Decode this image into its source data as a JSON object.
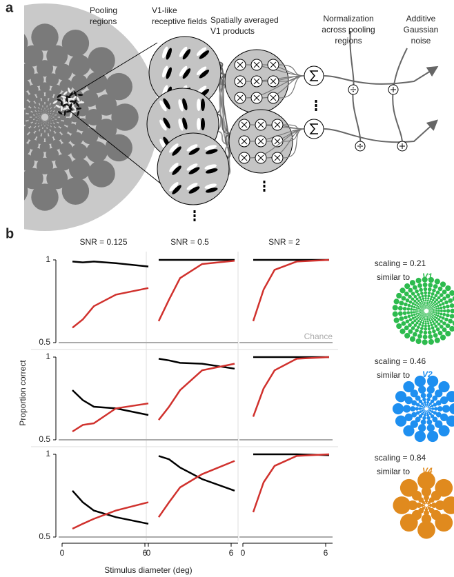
{
  "panel_a": {
    "label": "a",
    "captions": [
      [
        "Pooling",
        "regions"
      ],
      [
        "V1-like",
        "receptive fields"
      ],
      [
        "Spatially averaged",
        "V1 products"
      ],
      [
        "Normalization",
        "across pooling",
        "regions"
      ],
      [
        "Additive",
        "Gaussian",
        "noise"
      ]
    ]
  },
  "panel_b": {
    "label": "b",
    "column_titles": [
      "SNR = 0.125",
      "SNR = 0.5",
      "SNR = 2"
    ],
    "y_label": "Proportion correct",
    "x_label": "Stimulus diameter (deg)",
    "chance_label": "Chance",
    "area_rows": [
      {
        "scaling": "scaling = 0.21",
        "similar": "similar to",
        "area": "V1",
        "color": "#2dbb4e"
      },
      {
        "scaling": "scaling = 0.46",
        "similar": "similar to",
        "area": "V2",
        "color": "#1e8ff0"
      },
      {
        "scaling": "scaling = 0.84",
        "similar": "similar to",
        "area": "V4",
        "color": "#e08a1e"
      }
    ]
  },
  "chart_data": [
    {
      "type": "line",
      "x": [
        0.75,
        1.5,
        2.3,
        3.9,
        6.25
      ],
      "xlim": [
        0,
        6.5
      ],
      "ylim": [
        0.5,
        1
      ],
      "yticks": [
        {
          "value": 0.5,
          "label": "0.5"
        },
        1
      ],
      "hline": 0.5,
      "series": [
        {
          "color": "#000000",
          "values": [
            0.99,
            0.985,
            0.99,
            0.98,
            0.96
          ]
        },
        {
          "color": "#d0312d",
          "values": [
            0.59,
            0.64,
            0.72,
            0.79,
            0.83
          ]
        }
      ]
    },
    {
      "type": "line",
      "x": [
        0.75,
        1.5,
        2.3,
        3.9,
        6.25
      ],
      "xlim": [
        0,
        6.5
      ],
      "ylim": [
        0.5,
        1
      ],
      "hline": 0.5,
      "series": [
        {
          "color": "#000000",
          "values": [
            1,
            1,
            1,
            1,
            1
          ]
        },
        {
          "color": "#d0312d",
          "values": [
            0.63,
            0.76,
            0.89,
            0.975,
            0.995
          ]
        }
      ]
    },
    {
      "type": "line",
      "x": [
        0.75,
        1.5,
        2.3,
        3.9,
        6.25
      ],
      "xlim": [
        0,
        6.5
      ],
      "ylim": [
        0.5,
        1
      ],
      "hline": 0.5,
      "series": [
        {
          "color": "#000000",
          "values": [
            1,
            1,
            1,
            1,
            1
          ]
        },
        {
          "color": "#d0312d",
          "values": [
            0.63,
            0.82,
            0.94,
            0.99,
            1
          ]
        }
      ]
    },
    {
      "type": "line",
      "x": [
        0.75,
        1.5,
        2.3,
        3.9,
        6.25
      ],
      "xlim": [
        0,
        6.5
      ],
      "ylim": [
        0.5,
        1
      ],
      "yticks": [
        {
          "value": 0.5,
          "label": "0.5"
        },
        1
      ],
      "hline": 0.5,
      "series": [
        {
          "color": "#000000",
          "values": [
            0.8,
            0.74,
            0.7,
            0.69,
            0.65
          ]
        },
        {
          "color": "#d0312d",
          "values": [
            0.55,
            0.59,
            0.6,
            0.69,
            0.72
          ]
        }
      ]
    },
    {
      "type": "line",
      "x": [
        0.75,
        1.5,
        2.3,
        3.9,
        6.25
      ],
      "xlim": [
        0,
        6.5
      ],
      "ylim": [
        0.5,
        1
      ],
      "hline": 0.5,
      "series": [
        {
          "color": "#000000",
          "values": [
            0.99,
            0.98,
            0.965,
            0.96,
            0.93
          ]
        },
        {
          "color": "#d0312d",
          "values": [
            0.62,
            0.7,
            0.8,
            0.92,
            0.96
          ]
        }
      ]
    },
    {
      "type": "line",
      "x": [
        0.75,
        1.5,
        2.3,
        3.9,
        6.25
      ],
      "xlim": [
        0,
        6.5
      ],
      "ylim": [
        0.5,
        1
      ],
      "hline": 0.5,
      "series": [
        {
          "color": "#000000",
          "values": [
            1,
            1,
            1,
            1,
            1
          ]
        },
        {
          "color": "#d0312d",
          "values": [
            0.64,
            0.81,
            0.92,
            0.99,
            1
          ]
        }
      ]
    },
    {
      "type": "line",
      "x": [
        0.75,
        1.5,
        2.3,
        3.9,
        6.25
      ],
      "xlim": [
        0,
        6.5
      ],
      "ylim": [
        0.5,
        1
      ],
      "yticks": [
        {
          "value": 0.5,
          "label": "0.5"
        },
        1
      ],
      "xticks": [
        0,
        6
      ],
      "hline": 0.5,
      "series": [
        {
          "color": "#000000",
          "values": [
            0.78,
            0.71,
            0.66,
            0.62,
            0.58
          ]
        },
        {
          "color": "#d0312d",
          "values": [
            0.55,
            0.58,
            0.61,
            0.66,
            0.71
          ]
        }
      ]
    },
    {
      "type": "line",
      "x": [
        0.75,
        1.5,
        2.3,
        3.9,
        6.25
      ],
      "xlim": [
        0,
        6.5
      ],
      "ylim": [
        0.5,
        1
      ],
      "xticks": [
        0,
        6
      ],
      "hline": 0.5,
      "series": [
        {
          "color": "#000000",
          "values": [
            0.99,
            0.97,
            0.92,
            0.85,
            0.78
          ]
        },
        {
          "color": "#d0312d",
          "values": [
            0.62,
            0.71,
            0.8,
            0.88,
            0.96
          ]
        }
      ]
    },
    {
      "type": "line",
      "x": [
        0.75,
        1.5,
        2.3,
        3.9,
        6.25
      ],
      "xlim": [
        0,
        6.5
      ],
      "ylim": [
        0.5,
        1
      ],
      "xticks": [
        0,
        6
      ],
      "hline": 0.5,
      "series": [
        {
          "color": "#000000",
          "values": [
            1,
            1,
            1,
            1,
            0.995
          ]
        },
        {
          "color": "#d0312d",
          "values": [
            0.65,
            0.83,
            0.93,
            0.99,
            1
          ]
        }
      ]
    }
  ]
}
